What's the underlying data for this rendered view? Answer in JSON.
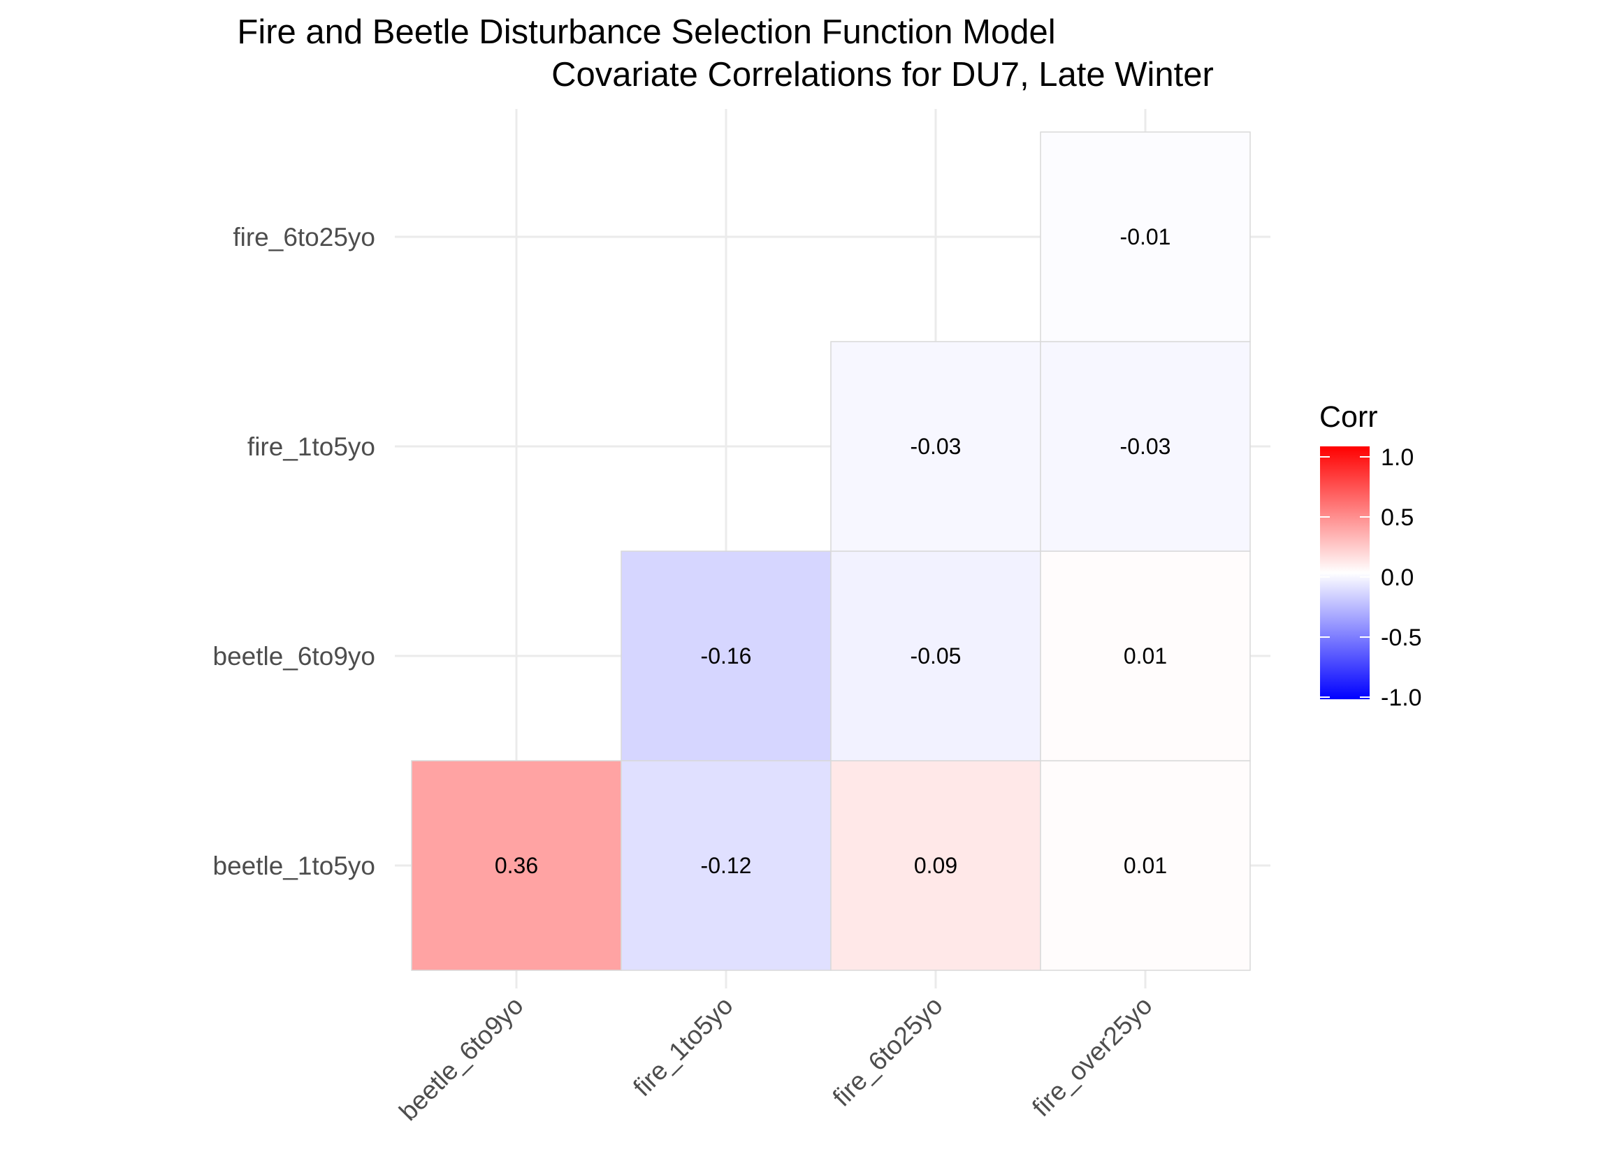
{
  "chart_data": {
    "type": "heatmap",
    "title": "Fire and Beetle Disturbance Selection Function Model",
    "subtitle": "Covariate Correlations for DU7, Late Winter",
    "xlabel": "",
    "ylabel": "",
    "x_categories": [
      "beetle_6to9yo",
      "fire_1to5yo",
      "fire_6to25yo",
      "fire_over25yo"
    ],
    "y_categories": [
      "beetle_1to5yo",
      "beetle_6to9yo",
      "fire_1to5yo",
      "fire_6to25yo"
    ],
    "cells": [
      {
        "x": "beetle_6to9yo",
        "y": "beetle_1to5yo",
        "value": 0.36,
        "label": "0.36"
      },
      {
        "x": "fire_1to5yo",
        "y": "beetle_1to5yo",
        "value": -0.12,
        "label": "-0.12"
      },
      {
        "x": "fire_6to25yo",
        "y": "beetle_1to5yo",
        "value": 0.09,
        "label": "0.09"
      },
      {
        "x": "fire_over25yo",
        "y": "beetle_1to5yo",
        "value": 0.01,
        "label": "0.01"
      },
      {
        "x": "fire_1to5yo",
        "y": "beetle_6to9yo",
        "value": -0.16,
        "label": "-0.16"
      },
      {
        "x": "fire_6to25yo",
        "y": "beetle_6to9yo",
        "value": -0.05,
        "label": "-0.05"
      },
      {
        "x": "fire_over25yo",
        "y": "beetle_6to9yo",
        "value": 0.01,
        "label": "0.01"
      },
      {
        "x": "fire_6to25yo",
        "y": "fire_1to5yo",
        "value": -0.03,
        "label": "-0.03"
      },
      {
        "x": "fire_over25yo",
        "y": "fire_1to5yo",
        "value": -0.03,
        "label": "-0.03"
      },
      {
        "x": "fire_over25yo",
        "y": "fire_6to25yo",
        "value": -0.01,
        "label": "-0.01"
      }
    ],
    "legend": {
      "title": "Corr",
      "ticks": [
        "1.0",
        "0.5",
        "0.0",
        "-0.5",
        "-1.0"
      ],
      "tick_values": [
        1.0,
        0.5,
        0.0,
        -0.5,
        -1.0
      ],
      "range": [
        -1,
        1
      ],
      "colors": {
        "low": "#0000ff",
        "mid": "#ffffff",
        "high": "#ff0000"
      },
      "placement": "right"
    },
    "grid": true
  }
}
